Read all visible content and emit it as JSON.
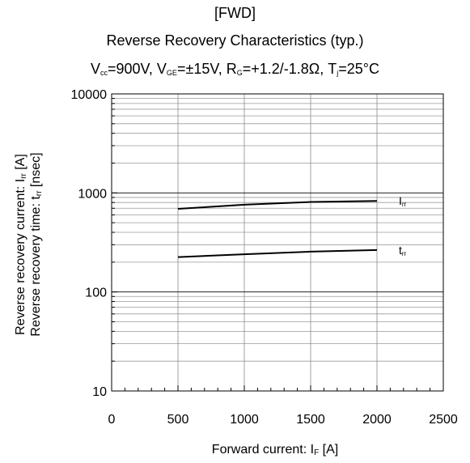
{
  "title": {
    "line1": "[FWD]",
    "line2": "Reverse Recovery Characteristics (typ.)",
    "conditions": [
      {
        "main": "V",
        "sub": "cc",
        "rest": "=900V, "
      },
      {
        "main": "V",
        "sub": "GE",
        "rest": "=±15V, "
      },
      {
        "main": "R",
        "sub": "G",
        "rest": "=+1.2/-1.8Ω, "
      },
      {
        "main": "T",
        "sub": "j",
        "rest": "=25°C"
      }
    ]
  },
  "chart_data": {
    "type": "line",
    "xlabel": {
      "main": "Forward current: I",
      "sub": "F",
      "rest": " [A]"
    },
    "ylabel": [
      {
        "main": "Reverse recovery current: I",
        "sub": "rr",
        "rest": " [A]"
      },
      {
        "main": "Reverse recovery time: t",
        "sub": "rr",
        "rest": " [nsec]"
      }
    ],
    "xlim": [
      0,
      2500
    ],
    "ylim": [
      10,
      10000
    ],
    "yscale": "log",
    "x_ticks": [
      0,
      500,
      1000,
      1500,
      2000,
      2500
    ],
    "y_ticks": [
      10,
      100,
      1000,
      10000
    ],
    "grid": true,
    "series": [
      {
        "name": {
          "main": "I",
          "sub": "rr"
        },
        "x": [
          500,
          1000,
          1500,
          2000
        ],
        "values": [
          690,
          760,
          810,
          830
        ]
      },
      {
        "name": {
          "main": "t",
          "sub": "rr"
        },
        "x": [
          500,
          1000,
          1500,
          2000
        ],
        "values": [
          225,
          240,
          255,
          265
        ]
      }
    ]
  }
}
